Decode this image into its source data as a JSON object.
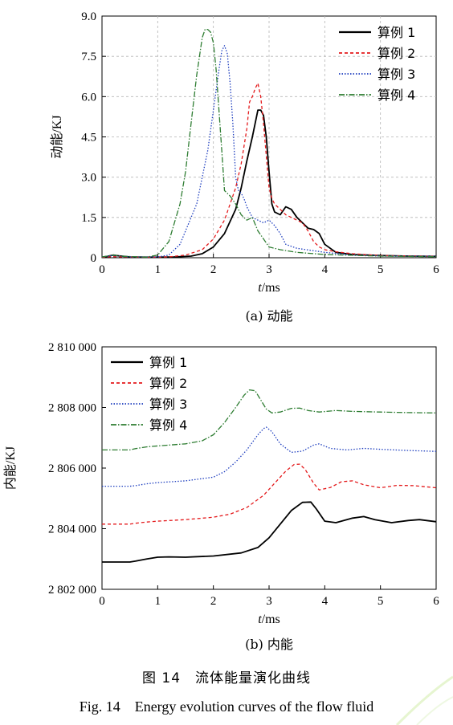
{
  "figure": {
    "caption_cn": "图 14　流体能量演化曲线",
    "caption_en": "Fig. 14　Energy evolution curves of the flow fluid"
  },
  "chart_data": [
    {
      "type": "line",
      "subtitle": "(a) 动能",
      "ylabel": "动能/KJ",
      "xlabel_italic": "t",
      "xlabel_unit": "/ms",
      "xlim": [
        0,
        6
      ],
      "ylim": [
        0,
        9
      ],
      "xticks": [
        0,
        1,
        2,
        3,
        4,
        5,
        6
      ],
      "yticks": [
        0,
        1.5,
        3.0,
        4.5,
        6.0,
        7.5,
        9.0
      ],
      "ytick_labels": [
        "0",
        "1.5",
        "3.0",
        "4.5",
        "6.0",
        "7.5",
        "9.0"
      ],
      "grid": true,
      "legend": "top-right",
      "series": [
        {
          "name": "算例 1",
          "color": "#000000",
          "dash": "solid",
          "x": [
            0,
            0.1,
            0.2,
            0.3,
            0.5,
            0.8,
            1.0,
            1.3,
            1.6,
            1.8,
            2.0,
            2.2,
            2.4,
            2.5,
            2.6,
            2.7,
            2.8,
            2.85,
            2.9,
            2.95,
            3.0,
            3.05,
            3.1,
            3.2,
            3.3,
            3.4,
            3.5,
            3.6,
            3.7,
            3.8,
            3.9,
            4.0,
            4.2,
            4.5,
            5.0,
            5.5,
            6.0
          ],
          "y": [
            0.02,
            0.05,
            0.1,
            0.07,
            0.03,
            0.02,
            0.02,
            0.03,
            0.06,
            0.15,
            0.4,
            0.9,
            1.8,
            2.6,
            3.6,
            4.5,
            5.5,
            5.5,
            5.3,
            4.5,
            3.2,
            2.0,
            1.7,
            1.6,
            1.9,
            1.8,
            1.5,
            1.3,
            1.1,
            1.05,
            0.9,
            0.5,
            0.2,
            0.12,
            0.08,
            0.06,
            0.05
          ]
        },
        {
          "name": "算例 2",
          "color": "#e41a1c",
          "dash": "4,3",
          "x": [
            0,
            0.2,
            0.4,
            0.8,
            1.2,
            1.5,
            1.8,
            2.0,
            2.2,
            2.4,
            2.5,
            2.6,
            2.65,
            2.7,
            2.75,
            2.8,
            2.85,
            2.9,
            2.95,
            3.0,
            3.05,
            3.1,
            3.2,
            3.3,
            3.5,
            3.6,
            3.7,
            3.8,
            3.9,
            4.0,
            4.2,
            4.5,
            5.0,
            6.0
          ],
          "y": [
            0.02,
            0.04,
            0.03,
            0.02,
            0.03,
            0.1,
            0.3,
            0.7,
            1.4,
            2.6,
            3.5,
            4.8,
            5.8,
            6.0,
            6.3,
            6.5,
            6.0,
            5.0,
            3.8,
            2.6,
            2.2,
            2.0,
            1.8,
            1.6,
            1.4,
            1.3,
            1.0,
            0.6,
            0.4,
            0.3,
            0.22,
            0.15,
            0.08,
            0.05
          ]
        },
        {
          "name": "算例 3",
          "color": "#1f3fbf",
          "dash": "1.5,2",
          "x": [
            0,
            0.2,
            0.5,
            1.0,
            1.2,
            1.4,
            1.5,
            1.7,
            1.9,
            2.0,
            2.1,
            2.15,
            2.2,
            2.25,
            2.3,
            2.35,
            2.4,
            2.45,
            2.5,
            2.55,
            2.6,
            2.7,
            2.8,
            2.9,
            3.0,
            3.1,
            3.2,
            3.3,
            3.5,
            4.0,
            4.5,
            5.0,
            6.0
          ],
          "y": [
            0.03,
            0.08,
            0.03,
            0.03,
            0.1,
            0.5,
            1.0,
            2.0,
            4.0,
            5.5,
            7.0,
            7.7,
            7.9,
            7.6,
            6.5,
            5.0,
            3.0,
            2.5,
            2.4,
            2.2,
            1.9,
            1.5,
            1.4,
            1.3,
            1.4,
            1.2,
            0.9,
            0.5,
            0.35,
            0.2,
            0.1,
            0.07,
            0.05
          ]
        },
        {
          "name": "算例 4",
          "color": "#2e7d32",
          "dash": "7,2,1.5,2",
          "x": [
            0,
            0.2,
            0.4,
            0.8,
            1.0,
            1.2,
            1.4,
            1.5,
            1.6,
            1.7,
            1.8,
            1.85,
            1.9,
            1.95,
            2.0,
            2.05,
            2.1,
            2.15,
            2.2,
            2.3,
            2.4,
            2.5,
            2.6,
            2.7,
            2.8,
            2.9,
            3.0,
            3.2,
            3.5,
            4.0,
            5.0,
            6.0
          ],
          "y": [
            0.03,
            0.1,
            0.05,
            0.02,
            0.1,
            0.6,
            2.0,
            3.2,
            5.0,
            6.8,
            8.2,
            8.5,
            8.5,
            8.4,
            8.0,
            7.0,
            5.5,
            4.0,
            2.5,
            2.3,
            2.0,
            1.6,
            1.4,
            1.5,
            1.0,
            0.7,
            0.4,
            0.3,
            0.2,
            0.12,
            0.06,
            0.04
          ]
        }
      ]
    },
    {
      "type": "line",
      "subtitle": "(b) 内能",
      "ylabel": "内能/KJ",
      "xlabel_italic": "t",
      "xlabel_unit": "/ms",
      "xlim": [
        0,
        6
      ],
      "ylim": [
        2802000,
        2810000
      ],
      "xticks": [
        0,
        1,
        2,
        3,
        4,
        5,
        6
      ],
      "yticks": [
        2802000,
        2804000,
        2806000,
        2808000,
        2810000
      ],
      "ytick_labels": [
        "2 802 000",
        "2 804 000",
        "2 806 000",
        "2 808 000",
        "2 810 000"
      ],
      "grid": false,
      "legend": "top-left",
      "series": [
        {
          "name": "算例 1",
          "color": "#000000",
          "dash": "solid",
          "x": [
            0,
            0.5,
            0.6,
            0.8,
            1.0,
            1.2,
            1.5,
            2.0,
            2.5,
            2.8,
            3.0,
            3.2,
            3.4,
            3.6,
            3.75,
            3.85,
            4.0,
            4.2,
            4.5,
            4.7,
            4.9,
            5.2,
            5.5,
            5.7,
            6.0
          ],
          "y": [
            2802900,
            2802900,
            2802930,
            2803000,
            2803060,
            2803070,
            2803060,
            2803100,
            2803200,
            2803380,
            2803700,
            2804150,
            2804600,
            2804870,
            2804880,
            2804650,
            2804250,
            2804200,
            2804350,
            2804400,
            2804300,
            2804200,
            2804270,
            2804300,
            2804230
          ]
        },
        {
          "name": "算例 2",
          "color": "#e41a1c",
          "dash": "4,3",
          "x": [
            0,
            0.5,
            0.6,
            0.8,
            1.0,
            1.5,
            2.0,
            2.3,
            2.6,
            2.9,
            3.1,
            3.3,
            3.45,
            3.55,
            3.65,
            3.8,
            3.9,
            4.1,
            4.3,
            4.5,
            4.7,
            5.0,
            5.3,
            5.6,
            6.0
          ],
          "y": [
            2804150,
            2804150,
            2804180,
            2804220,
            2804250,
            2804300,
            2804380,
            2804480,
            2804700,
            2805100,
            2805500,
            2805900,
            2806120,
            2806130,
            2805950,
            2805500,
            2805280,
            2805360,
            2805550,
            2805580,
            2805450,
            2805350,
            2805430,
            2805420,
            2805350
          ]
        },
        {
          "name": "算例 3",
          "color": "#1f3fbf",
          "dash": "1.5,2",
          "x": [
            0,
            0.5,
            0.6,
            0.8,
            1.0,
            1.5,
            2.0,
            2.2,
            2.4,
            2.6,
            2.8,
            2.9,
            2.95,
            3.05,
            3.2,
            3.4,
            3.6,
            3.8,
            3.9,
            4.1,
            4.4,
            4.7,
            5.0,
            5.5,
            6.0
          ],
          "y": [
            2805400,
            2805400,
            2805420,
            2805480,
            2805520,
            2805580,
            2805700,
            2805880,
            2806200,
            2806600,
            2807100,
            2807300,
            2807350,
            2807200,
            2806800,
            2806520,
            2806560,
            2806760,
            2806800,
            2806650,
            2806600,
            2806650,
            2806620,
            2806580,
            2806550
          ]
        },
        {
          "name": "算例 4",
          "color": "#2e7d32",
          "dash": "7,2,1.5,2",
          "x": [
            0,
            0.5,
            0.6,
            0.8,
            1.0,
            1.5,
            1.8,
            2.0,
            2.2,
            2.4,
            2.55,
            2.65,
            2.75,
            2.85,
            2.95,
            3.05,
            3.2,
            3.4,
            3.55,
            3.7,
            3.9,
            4.2,
            4.5,
            5.0,
            5.5,
            6.0
          ],
          "y": [
            2806600,
            2806600,
            2806640,
            2806700,
            2806730,
            2806800,
            2806900,
            2807100,
            2807500,
            2808000,
            2808400,
            2808580,
            2808550,
            2808250,
            2807950,
            2807820,
            2807850,
            2807970,
            2807980,
            2807900,
            2807850,
            2807900,
            2807870,
            2807850,
            2807830,
            2807820
          ]
        }
      ]
    }
  ]
}
